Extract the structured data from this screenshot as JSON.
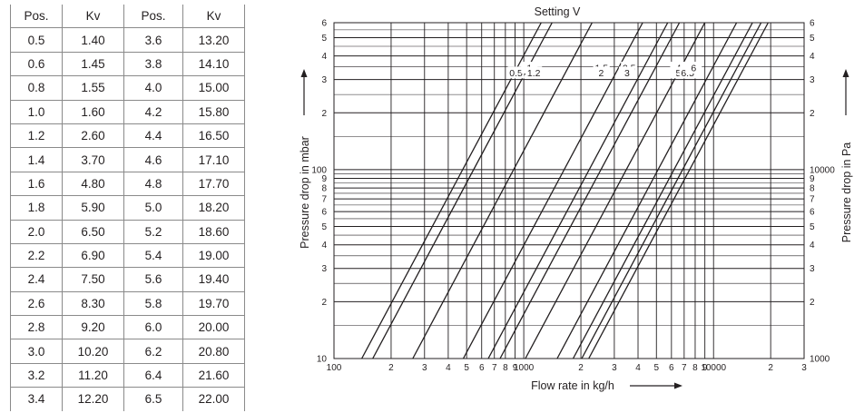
{
  "table": {
    "headers": [
      "Pos.",
      "Kv",
      "Pos.",
      "Kv"
    ],
    "rows": [
      [
        "0.5",
        "1.40",
        "3.6",
        "13.20"
      ],
      [
        "0.6",
        "1.45",
        "3.8",
        "14.10"
      ],
      [
        "0.8",
        "1.55",
        "4.0",
        "15.00"
      ],
      [
        "1.0",
        "1.60",
        "4.2",
        "15.80"
      ],
      [
        "1.2",
        "2.60",
        "4.4",
        "16.50"
      ],
      [
        "1.4",
        "3.70",
        "4.6",
        "17.10"
      ],
      [
        "1.6",
        "4.80",
        "4.8",
        "17.70"
      ],
      [
        "1.8",
        "5.90",
        "5.0",
        "18.20"
      ],
      [
        "2.0",
        "6.50",
        "5.2",
        "18.60"
      ],
      [
        "2.2",
        "6.90",
        "5.4",
        "19.00"
      ],
      [
        "2.4",
        "7.50",
        "5.6",
        "19.40"
      ],
      [
        "2.6",
        "8.30",
        "5.8",
        "19.70"
      ],
      [
        "2.8",
        "9.20",
        "6.0",
        "20.00"
      ],
      [
        "3.0",
        "10.20",
        "6.2",
        "20.80"
      ],
      [
        "3.2",
        "11.20",
        "6.4",
        "21.60"
      ],
      [
        "3.4",
        "12.20",
        "6.5",
        "22.00"
      ]
    ]
  },
  "chart_data": {
    "type": "line",
    "title": "Setting V",
    "xlabel": "Flow rate in kg/h",
    "ylabel": "Pressure drop in mbar",
    "ylabel_right": "Pressure drop in Pa",
    "x_scale": "log",
    "y_scale": "log",
    "xlim": [
      100,
      30000
    ],
    "ylim": [
      10,
      600
    ],
    "grid": true,
    "x_ticks": [
      {
        "v": 100,
        "t": "100"
      },
      {
        "v": 200,
        "t": "2"
      },
      {
        "v": 300,
        "t": "3"
      },
      {
        "v": 400,
        "t": "4"
      },
      {
        "v": 500,
        "t": "5"
      },
      {
        "v": 600,
        "t": "6"
      },
      {
        "v": 700,
        "t": "7"
      },
      {
        "v": 800,
        "t": "8"
      },
      {
        "v": 900,
        "t": "9"
      },
      {
        "v": 1000,
        "t": "1000"
      },
      {
        "v": 2000,
        "t": "2"
      },
      {
        "v": 3000,
        "t": "3"
      },
      {
        "v": 4000,
        "t": "4"
      },
      {
        "v": 5000,
        "t": "5"
      },
      {
        "v": 6000,
        "t": "6"
      },
      {
        "v": 7000,
        "t": "7"
      },
      {
        "v": 8000,
        "t": "8"
      },
      {
        "v": 9000,
        "t": "9"
      },
      {
        "v": 10000,
        "t": "10000"
      },
      {
        "v": 20000,
        "t": "2"
      },
      {
        "v": 30000,
        "t": "3"
      }
    ],
    "y_ticks_left": [
      {
        "v": 10,
        "t": "10"
      },
      {
        "v": 20,
        "t": "2"
      },
      {
        "v": 30,
        "t": "3"
      },
      {
        "v": 40,
        "t": "4"
      },
      {
        "v": 50,
        "t": "5"
      },
      {
        "v": 60,
        "t": "6"
      },
      {
        "v": 70,
        "t": "7"
      },
      {
        "v": 80,
        "t": "8"
      },
      {
        "v": 90,
        "t": "9"
      },
      {
        "v": 100,
        "t": "100"
      },
      {
        "v": 200,
        "t": "2"
      },
      {
        "v": 300,
        "t": "3"
      },
      {
        "v": 400,
        "t": "4"
      },
      {
        "v": 500,
        "t": "5"
      },
      {
        "v": 600,
        "t": "6"
      }
    ],
    "y_ticks_right": [
      {
        "v": 10,
        "t": "1000"
      },
      {
        "v": 20,
        "t": "2"
      },
      {
        "v": 30,
        "t": "3"
      },
      {
        "v": 40,
        "t": "4"
      },
      {
        "v": 50,
        "t": "5"
      },
      {
        "v": 60,
        "t": "6"
      },
      {
        "v": 70,
        "t": "7"
      },
      {
        "v": 80,
        "t": "8"
      },
      {
        "v": 90,
        "t": "9"
      },
      {
        "v": 100,
        "t": "10000"
      },
      {
        "v": 200,
        "t": "2"
      },
      {
        "v": 300,
        "t": "3"
      },
      {
        "v": 400,
        "t": "4"
      },
      {
        "v": 500,
        "t": "5"
      },
      {
        "v": 600,
        "t": "6"
      }
    ],
    "series": [
      {
        "name": "0.5",
        "x": [
          140,
          1235
        ],
        "y": [
          10,
          600
        ],
        "label_at": [
          910,
          325
        ]
      },
      {
        "name": "1",
        "x": [
          160,
          1410
        ],
        "y": [
          10,
          600
        ],
        "label_at": [
          1070,
          345
        ]
      },
      {
        "name": "1.2",
        "x": [
          260,
          2290
        ],
        "y": [
          10,
          600
        ],
        "label_at": [
          1130,
          325
        ]
      },
      {
        "name": "1.5",
        "x": [
          480,
          4230
        ],
        "y": [
          10,
          600
        ],
        "label_at": [
          2570,
          345
        ]
      },
      {
        "name": "2",
        "x": [
          650,
          5730
        ],
        "y": [
          10,
          600
        ],
        "label_at": [
          2560,
          325
        ]
      },
      {
        "name": "2.5",
        "x": [
          750,
          6610
        ],
        "y": [
          10,
          600
        ],
        "label_at": [
          3590,
          345
        ]
      },
      {
        "name": "3",
        "x": [
          1020,
          8990
        ],
        "y": [
          10,
          600
        ],
        "label_at": [
          3500,
          325
        ]
      },
      {
        "name": "4",
        "x": [
          1500,
          13220
        ],
        "y": [
          10,
          600
        ],
        "label_at": [
          6530,
          345
        ]
      },
      {
        "name": "5",
        "x": [
          1820,
          16040
        ],
        "y": [
          10,
          600
        ],
        "label_at": [
          6520,
          325
        ]
      },
      {
        "name": "6.5",
        "x": [
          2020,
          17800
        ],
        "y": [
          10,
          600
        ],
        "label_at": [
          7300,
          325
        ]
      },
      {
        "name": "6",
        "x": [
          2200,
          19390
        ],
        "y": [
          10,
          600
        ],
        "label_at": [
          7850,
          345
        ]
      }
    ]
  }
}
